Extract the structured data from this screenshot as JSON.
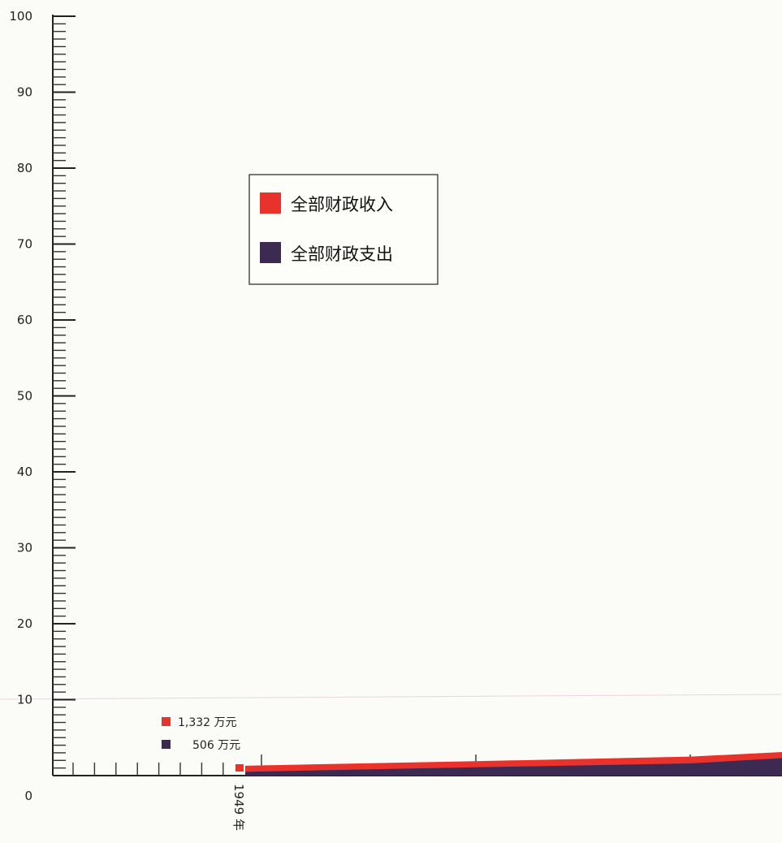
{
  "chart_data": {
    "type": "area",
    "ylim": [
      0,
      100
    ],
    "y_ticks": [
      "0",
      "10",
      "20",
      "30",
      "40",
      "50",
      "60",
      "70",
      "80",
      "90",
      "100"
    ],
    "x_label": "1949 年",
    "legend": {
      "placement": "upper-center",
      "items": [
        {
          "label": "全部财政收入",
          "color": "#e8322c"
        },
        {
          "label": "全部财政支出",
          "color": "#3d2a52"
        }
      ]
    },
    "annotations": [
      {
        "text": "1,332 万元",
        "color": "#e8322c"
      },
      {
        "text": "506 万元",
        "color": "#3d2a52"
      }
    ],
    "series": [
      {
        "name": "全部财政收入",
        "color": "#e8322c",
        "values": [
          1.3,
          1.9,
          2.5,
          3.1
        ]
      },
      {
        "name": "全部财政支出",
        "color": "#3d2a52",
        "values": [
          0.5,
          1.1,
          1.6,
          2.3
        ]
      }
    ]
  }
}
